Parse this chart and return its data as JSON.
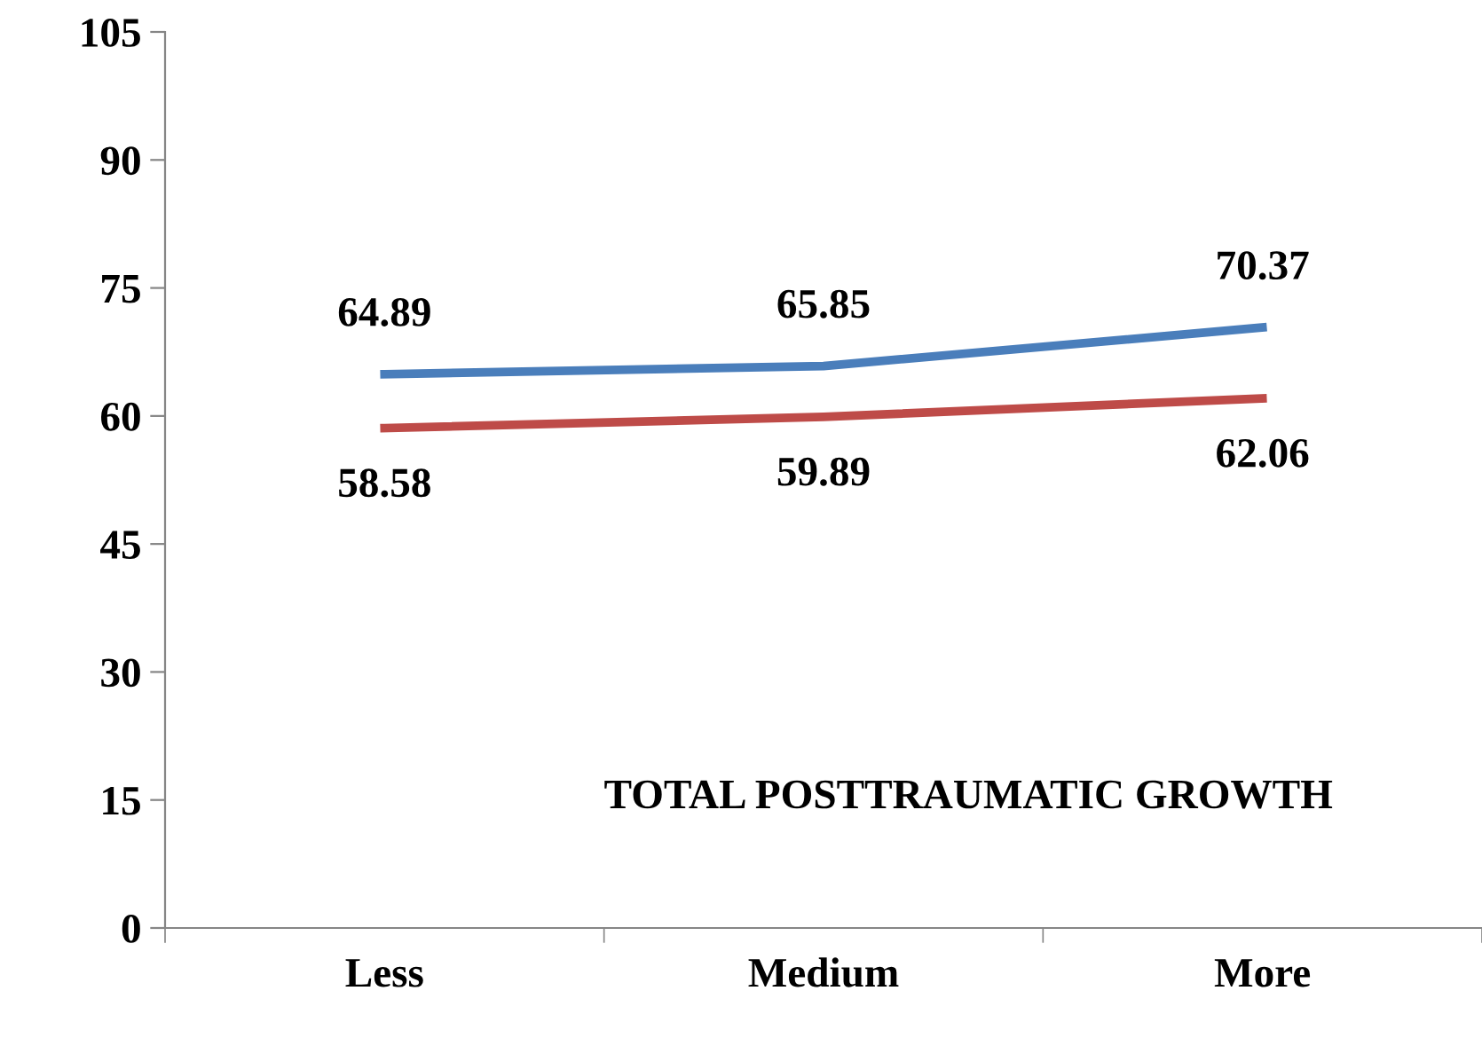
{
  "chart_data": {
    "type": "line",
    "title": "TOTAL POSTTRAUMATIC GROWTH",
    "categories": [
      "Less",
      "Medium",
      "More"
    ],
    "series": [
      {
        "color": "#4a7ebb",
        "values": [
          64.89,
          65.85,
          70.37
        ]
      },
      {
        "color": "#be4b48",
        "values": [
          58.58,
          59.89,
          62.06
        ]
      }
    ],
    "ylim": [
      0,
      105
    ],
    "yticks": [
      0,
      15,
      30,
      45,
      60,
      75,
      90,
      105
    ],
    "data_labels": true,
    "grid": false,
    "legend": false,
    "marker": "none",
    "line_style": "solid"
  }
}
